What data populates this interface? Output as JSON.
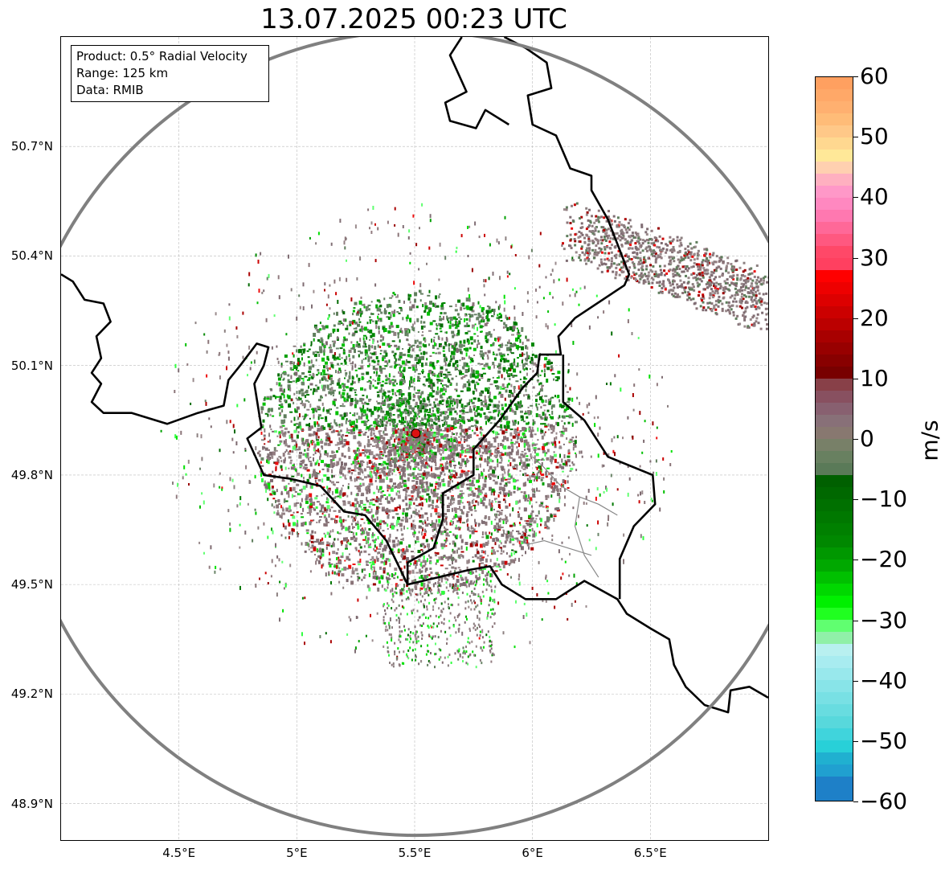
{
  "title": "13.07.2025 00:23 UTC",
  "infobox": {
    "product": "Product: 0.5° Radial Velocity",
    "range": "Range: 125 km",
    "source": "Data: RMIB"
  },
  "map": {
    "lon_range": [
      4.0,
      7.0
    ],
    "lat_range": [
      48.8,
      51.0
    ],
    "radar_site": {
      "lon": 5.505,
      "lat": 49.914
    },
    "range_ring_km": 125,
    "lat_ticks": [
      {
        "value": 50.7,
        "label": "50.7°N"
      },
      {
        "value": 50.4,
        "label": "50.4°N"
      },
      {
        "value": 50.1,
        "label": "50.1°N"
      },
      {
        "value": 49.8,
        "label": "49.8°N"
      },
      {
        "value": 49.5,
        "label": "49.5°N"
      },
      {
        "value": 49.2,
        "label": "49.2°N"
      },
      {
        "value": 48.9,
        "label": "48.9°N"
      }
    ],
    "lon_ticks": [
      {
        "value": 4.5,
        "label": "4.5°E"
      },
      {
        "value": 5.0,
        "label": "5°E"
      },
      {
        "value": 5.5,
        "label": "5.5°E"
      },
      {
        "value": 6.0,
        "label": "6°E"
      },
      {
        "value": 6.5,
        "label": "6.5°E"
      }
    ],
    "colors": {
      "range_ring": "#808080",
      "border": "#000000",
      "subborder": "#888888",
      "grid": "#bbbbbb",
      "site_marker": "#dd1111"
    }
  },
  "colorbar": {
    "unit": "m/s",
    "min": -60,
    "max": 60,
    "ticks": [
      {
        "value": 60,
        "label": "60"
      },
      {
        "value": 50,
        "label": "50"
      },
      {
        "value": 40,
        "label": "40"
      },
      {
        "value": 30,
        "label": "30"
      },
      {
        "value": 20,
        "label": "20"
      },
      {
        "value": 10,
        "label": "10"
      },
      {
        "value": 0,
        "label": "0"
      },
      {
        "value": -10,
        "label": "−10"
      },
      {
        "value": -20,
        "label": "−20"
      },
      {
        "value": -30,
        "label": "−30"
      },
      {
        "value": -40,
        "label": "−40"
      },
      {
        "value": -50,
        "label": "−50"
      },
      {
        "value": -60,
        "label": "−60"
      }
    ],
    "stops": [
      {
        "from": 58,
        "to": 60,
        "color": "#ffa060"
      },
      {
        "from": 56,
        "to": 58,
        "color": "#ffa868"
      },
      {
        "from": 54,
        "to": 56,
        "color": "#ffb070"
      },
      {
        "from": 52,
        "to": 54,
        "color": "#ffbc78"
      },
      {
        "from": 50,
        "to": 52,
        "color": "#ffc888"
      },
      {
        "from": 48,
        "to": 50,
        "color": "#ffd890"
      },
      {
        "from": 46,
        "to": 48,
        "color": "#ffe898"
      },
      {
        "from": 44,
        "to": 46,
        "color": "#ffd0b0"
      },
      {
        "from": 42,
        "to": 44,
        "color": "#ffb0c0"
      },
      {
        "from": 40,
        "to": 42,
        "color": "#ff98c8"
      },
      {
        "from": 38,
        "to": 40,
        "color": "#ff88c0"
      },
      {
        "from": 36,
        "to": 38,
        "color": "#ff78b0"
      },
      {
        "from": 34,
        "to": 36,
        "color": "#ff6898"
      },
      {
        "from": 32,
        "to": 34,
        "color": "#ff5880"
      },
      {
        "from": 30,
        "to": 32,
        "color": "#ff4868"
      },
      {
        "from": 28,
        "to": 30,
        "color": "#ff4060"
      },
      {
        "from": 26,
        "to": 28,
        "color": "#ff0000"
      },
      {
        "from": 24,
        "to": 26,
        "color": "#ee0000"
      },
      {
        "from": 22,
        "to": 24,
        "color": "#dd0000"
      },
      {
        "from": 20,
        "to": 22,
        "color": "#cc0000"
      },
      {
        "from": 18,
        "to": 20,
        "color": "#bb0000"
      },
      {
        "from": 16,
        "to": 18,
        "color": "#a80000"
      },
      {
        "from": 14,
        "to": 16,
        "color": "#980000"
      },
      {
        "from": 12,
        "to": 14,
        "color": "#880000"
      },
      {
        "from": 10,
        "to": 12,
        "color": "#780000"
      },
      {
        "from": 8,
        "to": 10,
        "color": "#884048"
      },
      {
        "from": 6,
        "to": 8,
        "color": "#885060"
      },
      {
        "from": 4,
        "to": 6,
        "color": "#886070"
      },
      {
        "from": 2,
        "to": 4,
        "color": "#887078"
      },
      {
        "from": 0,
        "to": 2,
        "color": "#887870"
      },
      {
        "from": -2,
        "to": 0,
        "color": "#788068"
      },
      {
        "from": -4,
        "to": -2,
        "color": "#688060"
      },
      {
        "from": -6,
        "to": -4,
        "color": "#5a7a58"
      },
      {
        "from": -8,
        "to": -6,
        "color": "#006000"
      },
      {
        "from": -10,
        "to": -8,
        "color": "#006800"
      },
      {
        "from": -12,
        "to": -10,
        "color": "#007000"
      },
      {
        "from": -14,
        "to": -12,
        "color": "#007800"
      },
      {
        "from": -16,
        "to": -14,
        "color": "#008000"
      },
      {
        "from": -18,
        "to": -16,
        "color": "#008800"
      },
      {
        "from": -20,
        "to": -18,
        "color": "#009800"
      },
      {
        "from": -22,
        "to": -20,
        "color": "#00a800"
      },
      {
        "from": -24,
        "to": -22,
        "color": "#00c000"
      },
      {
        "from": -26,
        "to": -24,
        "color": "#00d800"
      },
      {
        "from": -28,
        "to": -26,
        "color": "#00f000"
      },
      {
        "from": -30,
        "to": -28,
        "color": "#20ff20"
      },
      {
        "from": -32,
        "to": -30,
        "color": "#60ff70"
      },
      {
        "from": -34,
        "to": -32,
        "color": "#90f0a8"
      },
      {
        "from": -36,
        "to": -34,
        "color": "#b8f0f0"
      },
      {
        "from": -38,
        "to": -36,
        "color": "#a8ecf0"
      },
      {
        "from": -40,
        "to": -38,
        "color": "#98e8ec"
      },
      {
        "from": -42,
        "to": -40,
        "color": "#88e4e8"
      },
      {
        "from": -44,
        "to": -42,
        "color": "#78e0e4"
      },
      {
        "from": -46,
        "to": -44,
        "color": "#68dce0"
      },
      {
        "from": -48,
        "to": -46,
        "color": "#58d8dc"
      },
      {
        "from": -50,
        "to": -48,
        "color": "#40d4dc"
      },
      {
        "from": -52,
        "to": -50,
        "color": "#28d0d8"
      },
      {
        "from": -54,
        "to": -52,
        "color": "#20b0d0"
      },
      {
        "from": -56,
        "to": -54,
        "color": "#20a0d0"
      },
      {
        "from": -60,
        "to": -56,
        "color": "#1e80c8"
      }
    ]
  }
}
